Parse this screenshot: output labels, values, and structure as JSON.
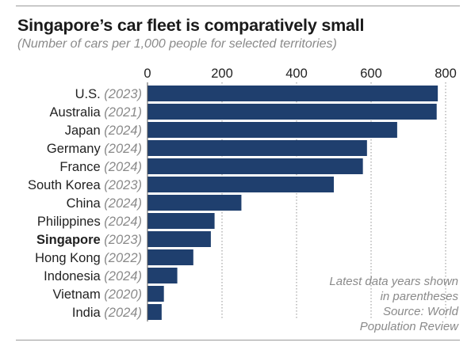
{
  "header": {
    "title": "Singapore’s car fleet is comparatively small",
    "subtitle": "(Number of cars per 1,000 people for selected territories)"
  },
  "note": {
    "lines": [
      "Latest data years shown",
      "in parentheses",
      "Source: World",
      "Population Review"
    ]
  },
  "colors": {
    "bar": "#1f3f6e",
    "label": "#222222",
    "year": "#8a8a8a",
    "grid": "#b0b0b0"
  },
  "chart_data": {
    "type": "bar",
    "orientation": "horizontal",
    "categories": [
      "U.S.",
      "Australia",
      "Japan",
      "Germany",
      "France",
      "South Korea",
      "China",
      "Philippines",
      "Singapore",
      "Hong Kong",
      "Indonesia",
      "Vietnam",
      "India"
    ],
    "years": [
      "(2023)",
      "(2021)",
      "(2024)",
      "(2024)",
      "(2024)",
      "(2023)",
      "(2024)",
      "(2024)",
      "(2023)",
      "(2022)",
      "(2024)",
      "(2020)",
      "(2024)"
    ],
    "highlight": "Singapore",
    "values": [
      779,
      776,
      670,
      589,
      578,
      500,
      252,
      180,
      170,
      123,
      80,
      44,
      38
    ],
    "xlim": [
      0,
      800
    ],
    "xticks": [
      "0",
      "200",
      "400",
      "600",
      "800"
    ],
    "grid": "dotted vertical",
    "title": "Singapore’s car fleet is comparatively small",
    "subtitle": "(Number of cars per 1,000 people for selected territories)"
  }
}
